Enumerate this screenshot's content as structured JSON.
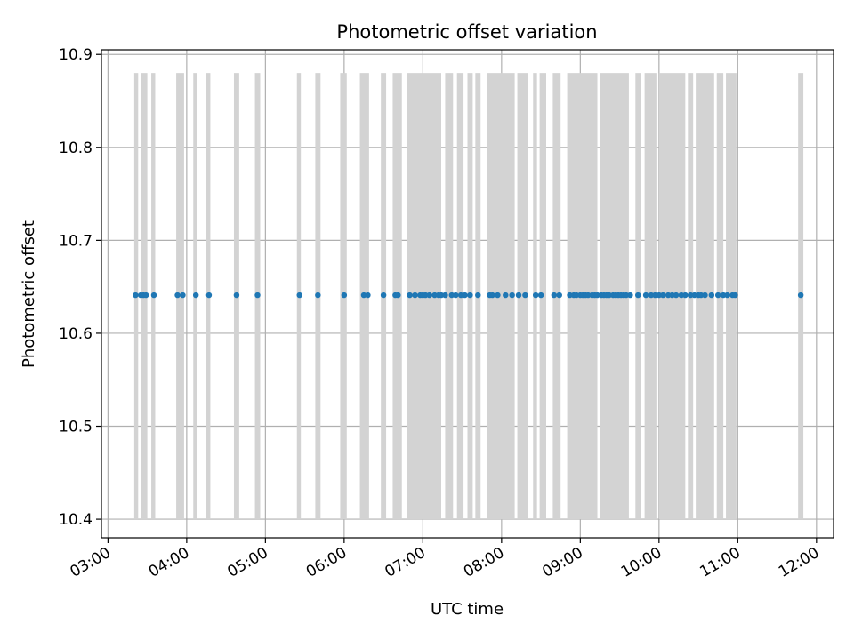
{
  "chart_data": {
    "type": "scatter",
    "title": "Photometric offset variation",
    "xlabel": "UTC time",
    "ylabel": "Photometric offset",
    "xlim": [
      "02:55",
      "12:13"
    ],
    "ylim": [
      10.38,
      10.905
    ],
    "x_ticks": [
      "03:00",
      "04:00",
      "05:00",
      "06:00",
      "07:00",
      "08:00",
      "09:00",
      "10:00",
      "11:00",
      "12:00"
    ],
    "y_ticks": [
      10.4,
      10.5,
      10.6,
      10.7,
      10.8,
      10.9
    ],
    "grid": true,
    "marker_color": "#1f77b4",
    "band_color": "#d3d3d3",
    "band_range": [
      10.4,
      10.88
    ],
    "series": [
      {
        "points_x": [
          "03:21",
          "03:25",
          "03:27",
          "03:29",
          "03:35",
          "03:53",
          "03:57",
          "04:07",
          "04:17",
          "04:38",
          "04:54",
          "05:26",
          "05:40",
          "06:00",
          "06:15",
          "06:18",
          "06:30",
          "06:39",
          "06:41",
          "06:50",
          "06:54",
          "06:58",
          "07:00",
          "07:02",
          "07:05",
          "07:09",
          "07:12",
          "07:14",
          "07:17",
          "07:22",
          "07:25",
          "07:29",
          "07:32",
          "07:36",
          "07:42",
          "07:51",
          "07:53",
          "07:57",
          "08:03",
          "08:08",
          "08:13",
          "08:18",
          "08:26",
          "08:30",
          "08:40",
          "08:44",
          "08:52",
          "08:55",
          "08:57",
          "09:00",
          "09:02",
          "09:04",
          "09:06",
          "09:09",
          "09:11",
          "09:13",
          "09:16",
          "09:18",
          "09:20",
          "09:22",
          "09:25",
          "09:27",
          "09:29",
          "09:31",
          "09:33",
          "09:35",
          "09:38",
          "09:44",
          "09:50",
          "09:54",
          "09:57",
          "10:00",
          "10:03",
          "10:07",
          "10:10",
          "10:13",
          "10:17",
          "10:20",
          "10:24",
          "10:27",
          "10:30",
          "10:32",
          "10:35",
          "10:40",
          "10:45",
          "10:49",
          "10:52",
          "10:56",
          "10:58",
          "11:48"
        ],
        "y": 10.641
      }
    ],
    "bands_x": [
      [
        "03:20",
        "03:23"
      ],
      [
        "03:25",
        "03:30"
      ],
      [
        "03:33",
        "03:36"
      ],
      [
        "03:52",
        "03:58"
      ],
      [
        "04:05",
        "04:08"
      ],
      [
        "04:15",
        "04:18"
      ],
      [
        "04:36",
        "04:40"
      ],
      [
        "04:52",
        "04:56"
      ],
      [
        "05:24",
        "05:27"
      ],
      [
        "05:38",
        "05:42"
      ],
      [
        "05:57",
        "06:02"
      ],
      [
        "06:12",
        "06:19"
      ],
      [
        "06:28",
        "06:32"
      ],
      [
        "06:37",
        "06:44"
      ],
      [
        "06:48",
        "07:14"
      ],
      [
        "07:17",
        "07:23"
      ],
      [
        "07:26",
        "07:31"
      ],
      [
        "07:34",
        "07:38"
      ],
      [
        "07:40",
        "07:44"
      ],
      [
        "07:49",
        "08:10"
      ],
      [
        "08:12",
        "08:20"
      ],
      [
        "08:24",
        "08:27"
      ],
      [
        "08:29",
        "08:34"
      ],
      [
        "08:39",
        "08:45"
      ],
      [
        "08:50",
        "09:13"
      ],
      [
        "09:15",
        "09:37"
      ],
      [
        "09:42",
        "09:46"
      ],
      [
        "09:49",
        "09:58"
      ],
      [
        "10:00",
        "10:20"
      ],
      [
        "10:22",
        "10:26"
      ],
      [
        "10:28",
        "10:42"
      ],
      [
        "10:44",
        "10:49"
      ],
      [
        "10:51",
        "10:59"
      ],
      [
        "11:46",
        "11:50"
      ]
    ]
  }
}
